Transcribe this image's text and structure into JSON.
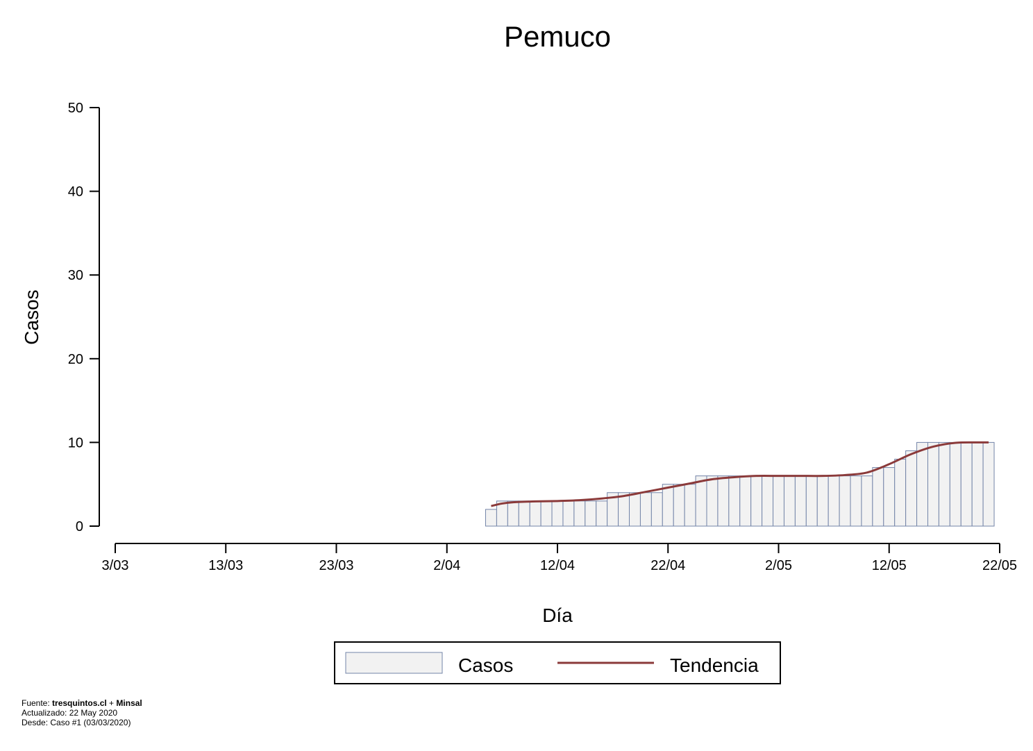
{
  "chart_data": {
    "type": "bar",
    "title": "Pemuco",
    "xlabel": "Día",
    "ylabel": "Casos",
    "ylim": [
      0,
      50
    ],
    "yticks": [
      0,
      10,
      20,
      30,
      40,
      50
    ],
    "xlim": [
      "2020-03-03",
      "2020-05-22"
    ],
    "xticks": [
      "3/03",
      "13/03",
      "23/03",
      "2/04",
      "12/04",
      "22/04",
      "2/05",
      "12/05",
      "22/05"
    ],
    "grid": false,
    "legend_position": "bottom",
    "series": [
      {
        "name": "Casos",
        "kind": "bar",
        "color": "#f2f2f2",
        "edge_color": "#7384a8",
        "dates": [
          "2020-04-06",
          "2020-04-07",
          "2020-04-08",
          "2020-04-09",
          "2020-04-10",
          "2020-04-11",
          "2020-04-12",
          "2020-04-13",
          "2020-04-14",
          "2020-04-15",
          "2020-04-16",
          "2020-04-17",
          "2020-04-18",
          "2020-04-19",
          "2020-04-20",
          "2020-04-21",
          "2020-04-22",
          "2020-04-23",
          "2020-04-24",
          "2020-04-25",
          "2020-04-26",
          "2020-04-27",
          "2020-04-28",
          "2020-04-29",
          "2020-04-30",
          "2020-05-01",
          "2020-05-02",
          "2020-05-03",
          "2020-05-04",
          "2020-05-05",
          "2020-05-06",
          "2020-05-07",
          "2020-05-08",
          "2020-05-09",
          "2020-05-10",
          "2020-05-11",
          "2020-05-12",
          "2020-05-13",
          "2020-05-14",
          "2020-05-15",
          "2020-05-16",
          "2020-05-17",
          "2020-05-18",
          "2020-05-19",
          "2020-05-20",
          "2020-05-21"
        ],
        "values": [
          2,
          3,
          3,
          3,
          3,
          3,
          3,
          3,
          3,
          3,
          3,
          4,
          4,
          4,
          4,
          4,
          5,
          5,
          5,
          6,
          6,
          6,
          6,
          6,
          6,
          6,
          6,
          6,
          6,
          6,
          6,
          6,
          6,
          6,
          6,
          7,
          7,
          8,
          9,
          10,
          10,
          10,
          10,
          10,
          10,
          10
        ]
      },
      {
        "name": "Tendencia",
        "kind": "line",
        "color": "#8b3a3a",
        "dates": [
          "2020-04-06",
          "2020-04-07",
          "2020-04-08",
          "2020-04-10",
          "2020-04-12",
          "2020-04-14",
          "2020-04-16",
          "2020-04-18",
          "2020-04-20",
          "2020-04-22",
          "2020-04-24",
          "2020-04-26",
          "2020-04-28",
          "2020-04-30",
          "2020-05-02",
          "2020-05-04",
          "2020-05-06",
          "2020-05-08",
          "2020-05-10",
          "2020-05-12",
          "2020-05-14",
          "2020-05-16",
          "2020-05-18",
          "2020-05-20",
          "2020-05-21"
        ],
        "values": [
          2.4,
          2.7,
          2.85,
          2.95,
          3.0,
          3.1,
          3.3,
          3.6,
          4.1,
          4.6,
          5.1,
          5.6,
          5.85,
          6.0,
          6.0,
          6.0,
          6.0,
          6.1,
          6.4,
          7.4,
          8.6,
          9.5,
          9.95,
          10.0,
          10.0
        ]
      }
    ]
  },
  "footer": {
    "source_prefix": "Fuente: ",
    "source_bold": "tresquintos.cl",
    "source_mid": " + ",
    "source_bold2": "Minsal",
    "updated": "Actualizado: 22 May 2020",
    "since": "Desde: Caso #1  (03/03/2020)"
  }
}
